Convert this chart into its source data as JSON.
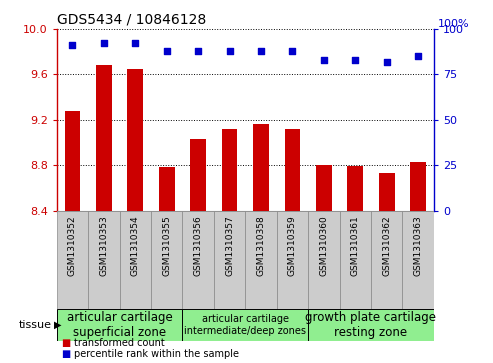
{
  "title": "GDS5434 / 10846128",
  "samples": [
    "GSM1310352",
    "GSM1310353",
    "GSM1310354",
    "GSM1310355",
    "GSM1310356",
    "GSM1310357",
    "GSM1310358",
    "GSM1310359",
    "GSM1310360",
    "GSM1310361",
    "GSM1310362",
    "GSM1310363"
  ],
  "bar_values": [
    9.28,
    9.68,
    9.65,
    8.78,
    9.03,
    9.12,
    9.16,
    9.12,
    8.8,
    8.79,
    8.73,
    8.83
  ],
  "scatter_values": [
    91,
    92.5,
    92.5,
    88,
    88,
    88,
    88,
    88,
    83,
    83,
    82,
    85
  ],
  "ylim_left": [
    8.4,
    10.0
  ],
  "ylim_right": [
    0,
    100
  ],
  "yticks_left": [
    8.4,
    8.8,
    9.2,
    9.6,
    10.0
  ],
  "yticks_right": [
    0,
    25,
    50,
    75,
    100
  ],
  "bar_color": "#cc0000",
  "scatter_color": "#0000cc",
  "xticklabel_bg": "#cccccc",
  "tissue_groups": [
    {
      "label": "articular cartilage\nsuperficial zone",
      "start": 0,
      "end": 4,
      "color": "#90ee90",
      "fontsize": 8.5
    },
    {
      "label": "articular cartilage\nintermediate/deep zones",
      "start": 4,
      "end": 8,
      "color": "#90ee90",
      "fontsize": 7.0
    },
    {
      "label": "growth plate cartilage\nresting zone",
      "start": 8,
      "end": 12,
      "color": "#90ee90",
      "fontsize": 8.5
    }
  ],
  "legend_items": [
    {
      "color": "#cc0000",
      "label": "transformed count"
    },
    {
      "color": "#0000cc",
      "label": "percentile rank within the sample"
    }
  ],
  "tissue_label": "tissue",
  "right_ylabel": "100%"
}
